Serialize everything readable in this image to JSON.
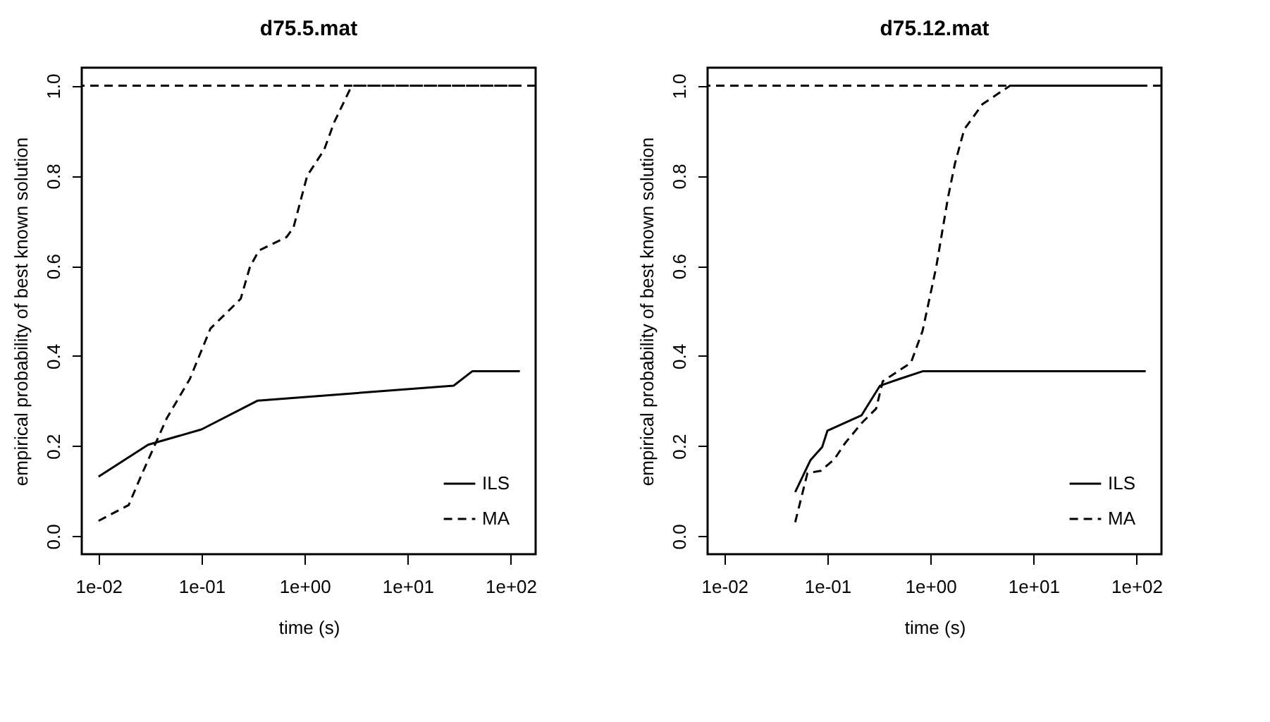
{
  "chart_data": [
    {
      "type": "line",
      "title": "d75.5.mat",
      "xlabel": "time (s)",
      "ylabel": "empirical probability of best known solution",
      "log": "x",
      "grid": false,
      "legend": "bottom right",
      "xlim": [
        0.00687,
        175
      ],
      "ylim": [
        -0.04,
        1.04
      ],
      "xticks": [
        {
          "value": 0.01,
          "label": "1e-02"
        },
        {
          "value": 0.1,
          "label": "1e-01"
        },
        {
          "value": 1,
          "label": "1e+00"
        },
        {
          "value": 10,
          "label": "1e+01"
        },
        {
          "value": 100,
          "label": "1e+02"
        }
      ],
      "yticks": [
        {
          "value": 0,
          "label": "0.0"
        },
        {
          "value": 0.2,
          "label": "0.2"
        },
        {
          "value": 0.4,
          "label": "0.4"
        },
        {
          "value": 0.6,
          "label": "0.6"
        },
        {
          "value": 0.8,
          "label": "0.8"
        },
        {
          "value": 1,
          "label": "1.0"
        }
      ],
      "ref_lines": [
        {
          "axis": "y",
          "value": 1,
          "label": null,
          "color": "#000000",
          "line_style": "dashed"
        }
      ],
      "series": [
        {
          "name": "ILS",
          "color": "#000000",
          "line_style": "solid",
          "x": [
            0.01,
            0.0303,
            0.1,
            0.351,
            28,
            42.4,
            123
          ],
          "values": [
            0.132,
            0.203,
            0.237,
            0.301,
            0.334,
            0.366,
            0.366
          ]
        },
        {
          "name": "MA",
          "color": "#000000",
          "line_style": "dashed",
          "x": [
            0.01,
            0.0196,
            0.026,
            0.046,
            0.077,
            0.122,
            0.158,
            0.24,
            0.295,
            0.36,
            0.67,
            0.78,
            1.06,
            1.55,
            1.94,
            2.87,
            123
          ],
          "values": [
            0.034,
            0.069,
            0.135,
            0.262,
            0.349,
            0.461,
            0.486,
            0.527,
            0.598,
            0.634,
            0.664,
            0.685,
            0.8,
            0.858,
            0.919,
            1.0,
            1.0
          ]
        }
      ]
    },
    {
      "type": "line",
      "title": "d75.12.mat",
      "xlabel": "time (s)",
      "ylabel": "empirical probability of best known solution",
      "log": "x",
      "grid": false,
      "legend": "bottom right",
      "xlim": [
        0.00687,
        175
      ],
      "ylim": [
        -0.04,
        1.04
      ],
      "xticks": [
        {
          "value": 0.01,
          "label": "1e-02"
        },
        {
          "value": 0.1,
          "label": "1e-01"
        },
        {
          "value": 1,
          "label": "1e+00"
        },
        {
          "value": 10,
          "label": "1e+01"
        },
        {
          "value": 100,
          "label": "1e+02"
        }
      ],
      "yticks": [
        {
          "value": 0,
          "label": "0.0"
        },
        {
          "value": 0.2,
          "label": "0.2"
        },
        {
          "value": 0.4,
          "label": "0.4"
        },
        {
          "value": 0.6,
          "label": "0.6"
        },
        {
          "value": 0.8,
          "label": "0.8"
        },
        {
          "value": 1,
          "label": "1.0"
        }
      ],
      "ref_lines": [
        {
          "axis": "y",
          "value": 1,
          "label": null,
          "color": "#000000",
          "line_style": "dashed"
        }
      ],
      "series": [
        {
          "name": "ILS",
          "color": "#000000",
          "line_style": "solid",
          "x": [
            0.0487,
            0.0686,
            0.089,
            0.1,
            0.214,
            0.324,
            0.5,
            0.84,
            123
          ],
          "values": [
            0.098,
            0.169,
            0.198,
            0.234,
            0.268,
            0.334,
            0.349,
            0.366,
            0.366
          ]
        },
        {
          "name": "MA",
          "color": "#000000",
          "line_style": "dashed",
          "x": [
            0.0487,
            0.064,
            0.086,
            0.117,
            0.149,
            0.217,
            0.297,
            0.345,
            0.647,
            0.84,
            1.14,
            1.48,
            1.73,
            2.13,
            3.2,
            5.93,
            123
          ],
          "values": [
            0.031,
            0.14,
            0.145,
            0.171,
            0.207,
            0.252,
            0.283,
            0.344,
            0.385,
            0.456,
            0.598,
            0.751,
            0.827,
            0.903,
            0.959,
            1.0,
            1.0
          ]
        }
      ]
    }
  ]
}
